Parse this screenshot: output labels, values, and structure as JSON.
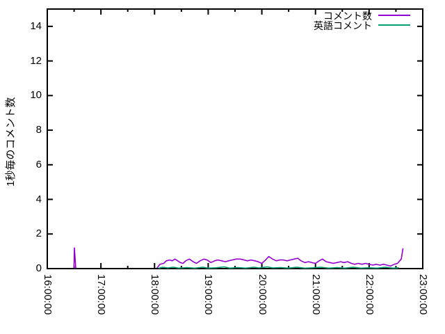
{
  "chart_data": {
    "type": "line",
    "title": "",
    "xlabel": "",
    "ylabel": "1秒毎のコメント数",
    "x_unit": "time (HH:MM:SS)",
    "xlim_hours": [
      16,
      23
    ],
    "ylim": [
      0,
      15
    ],
    "grid": false,
    "legend_position": "top-right-inside",
    "x_major_ticks": [
      {
        "hour": 16,
        "label": "16:00:00"
      },
      {
        "hour": 17,
        "label": "17:00:00"
      },
      {
        "hour": 18,
        "label": "18:00:00"
      },
      {
        "hour": 19,
        "label": "19:00:00"
      },
      {
        "hour": 20,
        "label": "20:00:00"
      },
      {
        "hour": 21,
        "label": "21:00:00"
      },
      {
        "hour": 22,
        "label": "22:00:00"
      },
      {
        "hour": 23,
        "label": "23:00:00"
      }
    ],
    "x_minor_tick_hours": [
      16.5,
      17.5,
      18.5,
      19.5,
      20.5,
      21.5,
      22.5
    ],
    "y_major_ticks": [
      0,
      2,
      4,
      6,
      8,
      10,
      12,
      14
    ],
    "series": [
      {
        "name": "コメント数",
        "color": "#9400d3",
        "segments": [
          [
            [
              16.498,
              0.05
            ],
            [
              16.505,
              1.2
            ],
            [
              16.53,
              0.05
            ]
          ],
          [
            [
              18.05,
              0.05
            ],
            [
              18.1,
              0.25
            ],
            [
              18.17,
              0.3
            ],
            [
              18.22,
              0.45
            ],
            [
              18.28,
              0.5
            ],
            [
              18.33,
              0.45
            ],
            [
              18.38,
              0.55
            ],
            [
              18.43,
              0.45
            ],
            [
              18.48,
              0.35
            ],
            [
              18.53,
              0.3
            ],
            [
              18.58,
              0.45
            ],
            [
              18.65,
              0.55
            ],
            [
              18.72,
              0.4
            ],
            [
              18.78,
              0.3
            ],
            [
              18.85,
              0.45
            ],
            [
              18.92,
              0.55
            ],
            [
              18.98,
              0.5
            ],
            [
              19.05,
              0.35
            ],
            [
              19.12,
              0.45
            ],
            [
              19.18,
              0.5
            ],
            [
              19.25,
              0.45
            ],
            [
              19.32,
              0.4
            ],
            [
              19.38,
              0.45
            ],
            [
              19.45,
              0.5
            ],
            [
              19.52,
              0.55
            ],
            [
              19.6,
              0.55
            ],
            [
              19.67,
              0.5
            ],
            [
              19.73,
              0.45
            ],
            [
              19.8,
              0.5
            ],
            [
              19.87,
              0.45
            ],
            [
              19.93,
              0.4
            ],
            [
              20.0,
              0.3
            ],
            [
              20.07,
              0.5
            ],
            [
              20.13,
              0.7
            ],
            [
              20.2,
              0.55
            ],
            [
              20.27,
              0.45
            ],
            [
              20.33,
              0.5
            ],
            [
              20.4,
              0.5
            ],
            [
              20.47,
              0.45
            ],
            [
              20.53,
              0.5
            ],
            [
              20.6,
              0.55
            ],
            [
              20.67,
              0.6
            ],
            [
              20.73,
              0.45
            ],
            [
              20.8,
              0.35
            ],
            [
              20.87,
              0.4
            ],
            [
              20.93,
              0.35
            ],
            [
              21.0,
              0.3
            ],
            [
              21.07,
              0.45
            ],
            [
              21.13,
              0.55
            ],
            [
              21.2,
              0.4
            ],
            [
              21.27,
              0.35
            ],
            [
              21.33,
              0.3
            ],
            [
              21.4,
              0.35
            ],
            [
              21.47,
              0.4
            ],
            [
              21.53,
              0.35
            ],
            [
              21.6,
              0.4
            ],
            [
              21.67,
              0.3
            ],
            [
              21.73,
              0.25
            ],
            [
              21.8,
              0.3
            ],
            [
              21.87,
              0.25
            ],
            [
              21.93,
              0.3
            ],
            [
              22.0,
              0.25
            ],
            [
              22.07,
              0.2
            ],
            [
              22.13,
              0.25
            ],
            [
              22.2,
              0.2
            ],
            [
              22.27,
              0.25
            ],
            [
              22.33,
              0.2
            ],
            [
              22.4,
              0.15
            ],
            [
              22.47,
              0.25
            ],
            [
              22.53,
              0.3
            ],
            [
              22.6,
              0.55
            ],
            [
              22.63,
              1.15
            ]
          ]
        ]
      },
      {
        "name": "英語コメント",
        "color": "#009e73",
        "segments": [
          [
            [
              18.08,
              0.03
            ],
            [
              18.15,
              0.08
            ],
            [
              18.25,
              0.04
            ],
            [
              18.35,
              0.08
            ],
            [
              18.45,
              0.03
            ],
            [
              18.6,
              0.06
            ],
            [
              18.75,
              0.03
            ],
            [
              18.9,
              0.08
            ],
            [
              19.0,
              0.03
            ],
            [
              19.15,
              0.05
            ],
            [
              19.3,
              0.1
            ],
            [
              19.4,
              0.03
            ],
            [
              19.55,
              0.06
            ],
            [
              19.7,
              0.03
            ],
            [
              19.85,
              0.08
            ],
            [
              19.95,
              0.04
            ],
            [
              20.1,
              0.1
            ],
            [
              20.2,
              0.04
            ],
            [
              20.35,
              0.06
            ],
            [
              20.5,
              0.03
            ],
            [
              20.65,
              0.08
            ],
            [
              20.8,
              0.03
            ],
            [
              20.95,
              0.05
            ],
            [
              21.1,
              0.08
            ],
            [
              21.25,
              0.03
            ],
            [
              21.4,
              0.06
            ],
            [
              21.55,
              0.03
            ],
            [
              21.7,
              0.08
            ],
            [
              21.85,
              0.03
            ],
            [
              22.0,
              0.05
            ],
            [
              22.15,
              0.03
            ],
            [
              22.3,
              0.08
            ],
            [
              22.45,
              0.03
            ],
            [
              22.55,
              0.05
            ]
          ]
        ]
      }
    ]
  },
  "layout_colors": {
    "background": "#ffffff",
    "axis": "#000000",
    "text": "#000000"
  }
}
